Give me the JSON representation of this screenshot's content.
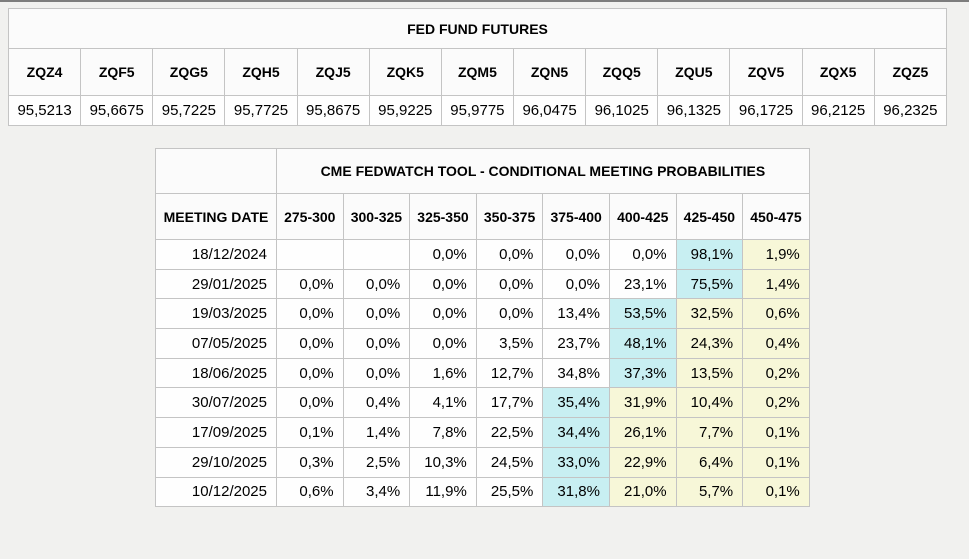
{
  "colors": {
    "highlight_cyan": "#c8eff2",
    "highlight_yellow": "#f7f7d8",
    "page_background": "#f1f1ef",
    "grid_border": "#c4c4c4"
  },
  "futures": {
    "title": "FED FUND FUTURES",
    "columns": [
      "ZQZ4",
      "ZQF5",
      "ZQG5",
      "ZQH5",
      "ZQJ5",
      "ZQK5",
      "ZQM5",
      "ZQN5",
      "ZQQ5",
      "ZQU5",
      "ZQV5",
      "ZQX5",
      "ZQZ5"
    ],
    "prices": [
      "95,5213",
      "95,6675",
      "95,7225",
      "95,7725",
      "95,8675",
      "95,9225",
      "95,9775",
      "96,0475",
      "96,1025",
      "96,1325",
      "96,1725",
      "96,2125",
      "96,2325"
    ]
  },
  "fedwatch": {
    "title": "CME FEDWATCH TOOL - CONDITIONAL MEETING PROBABILITIES",
    "date_header": "MEETING DATE",
    "rate_columns": [
      "275-300",
      "300-325",
      "325-350",
      "350-375",
      "375-400",
      "400-425",
      "425-450",
      "450-475"
    ],
    "rows": [
      {
        "date": "18/12/2024",
        "values": [
          "",
          "",
          "0,0%",
          "0,0%",
          "0,0%",
          "0,0%",
          "98,1%",
          "1,9%"
        ],
        "marks": [
          "",
          "",
          "",
          "",
          "",
          "",
          "cyan",
          "yellow"
        ]
      },
      {
        "date": "29/01/2025",
        "values": [
          "0,0%",
          "0,0%",
          "0,0%",
          "0,0%",
          "0,0%",
          "23,1%",
          "75,5%",
          "1,4%"
        ],
        "marks": [
          "",
          "",
          "",
          "",
          "",
          "",
          "cyan",
          "yellow"
        ]
      },
      {
        "date": "19/03/2025",
        "values": [
          "0,0%",
          "0,0%",
          "0,0%",
          "0,0%",
          "13,4%",
          "53,5%",
          "32,5%",
          "0,6%"
        ],
        "marks": [
          "",
          "",
          "",
          "",
          "",
          "cyan",
          "yellow",
          "yellow"
        ]
      },
      {
        "date": "07/05/2025",
        "values": [
          "0,0%",
          "0,0%",
          "0,0%",
          "3,5%",
          "23,7%",
          "48,1%",
          "24,3%",
          "0,4%"
        ],
        "marks": [
          "",
          "",
          "",
          "",
          "",
          "cyan",
          "yellow",
          "yellow"
        ]
      },
      {
        "date": "18/06/2025",
        "values": [
          "0,0%",
          "0,0%",
          "1,6%",
          "12,7%",
          "34,8%",
          "37,3%",
          "13,5%",
          "0,2%"
        ],
        "marks": [
          "",
          "",
          "",
          "",
          "",
          "cyan",
          "yellow",
          "yellow"
        ]
      },
      {
        "date": "30/07/2025",
        "values": [
          "0,0%",
          "0,4%",
          "4,1%",
          "17,7%",
          "35,4%",
          "31,9%",
          "10,4%",
          "0,2%"
        ],
        "marks": [
          "",
          "",
          "",
          "",
          "cyan",
          "yellow",
          "yellow",
          "yellow"
        ]
      },
      {
        "date": "17/09/2025",
        "values": [
          "0,1%",
          "1,4%",
          "7,8%",
          "22,5%",
          "34,4%",
          "26,1%",
          "7,7%",
          "0,1%"
        ],
        "marks": [
          "",
          "",
          "",
          "",
          "cyan",
          "yellow",
          "yellow",
          "yellow"
        ]
      },
      {
        "date": "29/10/2025",
        "values": [
          "0,3%",
          "2,5%",
          "10,3%",
          "24,5%",
          "33,0%",
          "22,9%",
          "6,4%",
          "0,1%"
        ],
        "marks": [
          "",
          "",
          "",
          "",
          "cyan",
          "yellow",
          "yellow",
          "yellow"
        ]
      },
      {
        "date": "10/12/2025",
        "values": [
          "0,6%",
          "3,4%",
          "11,9%",
          "25,5%",
          "31,8%",
          "21,0%",
          "5,7%",
          "0,1%"
        ],
        "marks": [
          "",
          "",
          "",
          "",
          "cyan",
          "yellow",
          "yellow",
          "yellow"
        ]
      }
    ]
  }
}
